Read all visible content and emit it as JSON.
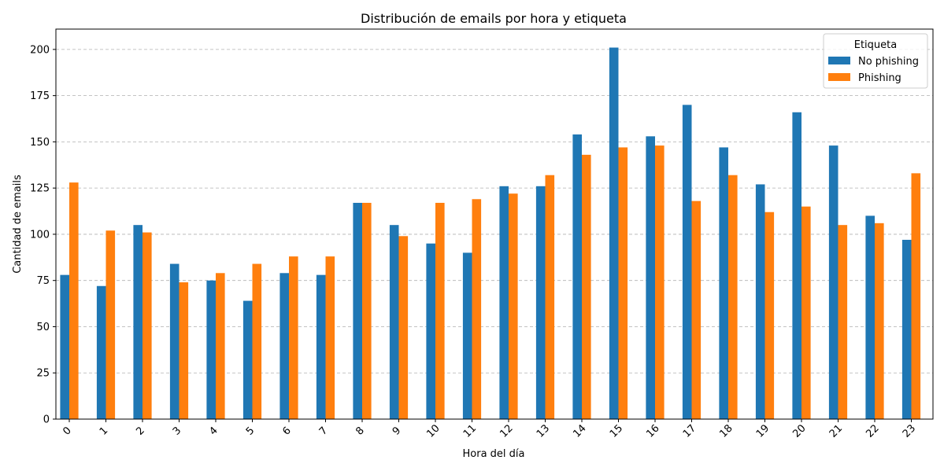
{
  "chart_data": {
    "type": "bar",
    "title": "Distribución de emails por hora y etiqueta",
    "xlabel": "Hora del día",
    "ylabel": "Cantidad de emails",
    "ylim": [
      0,
      211
    ],
    "yticks": [
      0,
      25,
      50,
      75,
      100,
      125,
      150,
      175,
      200
    ],
    "grid": "y-dashed",
    "legend": {
      "title": "Etiqueta",
      "placement": "top-right"
    },
    "categories": [
      "0",
      "1",
      "2",
      "3",
      "4",
      "5",
      "6",
      "7",
      "8",
      "9",
      "10",
      "11",
      "12",
      "13",
      "14",
      "15",
      "16",
      "17",
      "18",
      "19",
      "20",
      "21",
      "22",
      "23"
    ],
    "series": [
      {
        "name": "No phishing",
        "color": "#1f77b4",
        "values": [
          78,
          72,
          105,
          84,
          75,
          64,
          79,
          78,
          117,
          105,
          95,
          90,
          126,
          126,
          154,
          201,
          153,
          170,
          147,
          127,
          166,
          148,
          110,
          97
        ]
      },
      {
        "name": "Phishing",
        "color": "#ff7f0e",
        "values": [
          128,
          102,
          101,
          74,
          79,
          84,
          88,
          88,
          117,
          99,
          117,
          119,
          122,
          132,
          143,
          147,
          148,
          118,
          132,
          112,
          115,
          105,
          106,
          133
        ]
      }
    ]
  }
}
